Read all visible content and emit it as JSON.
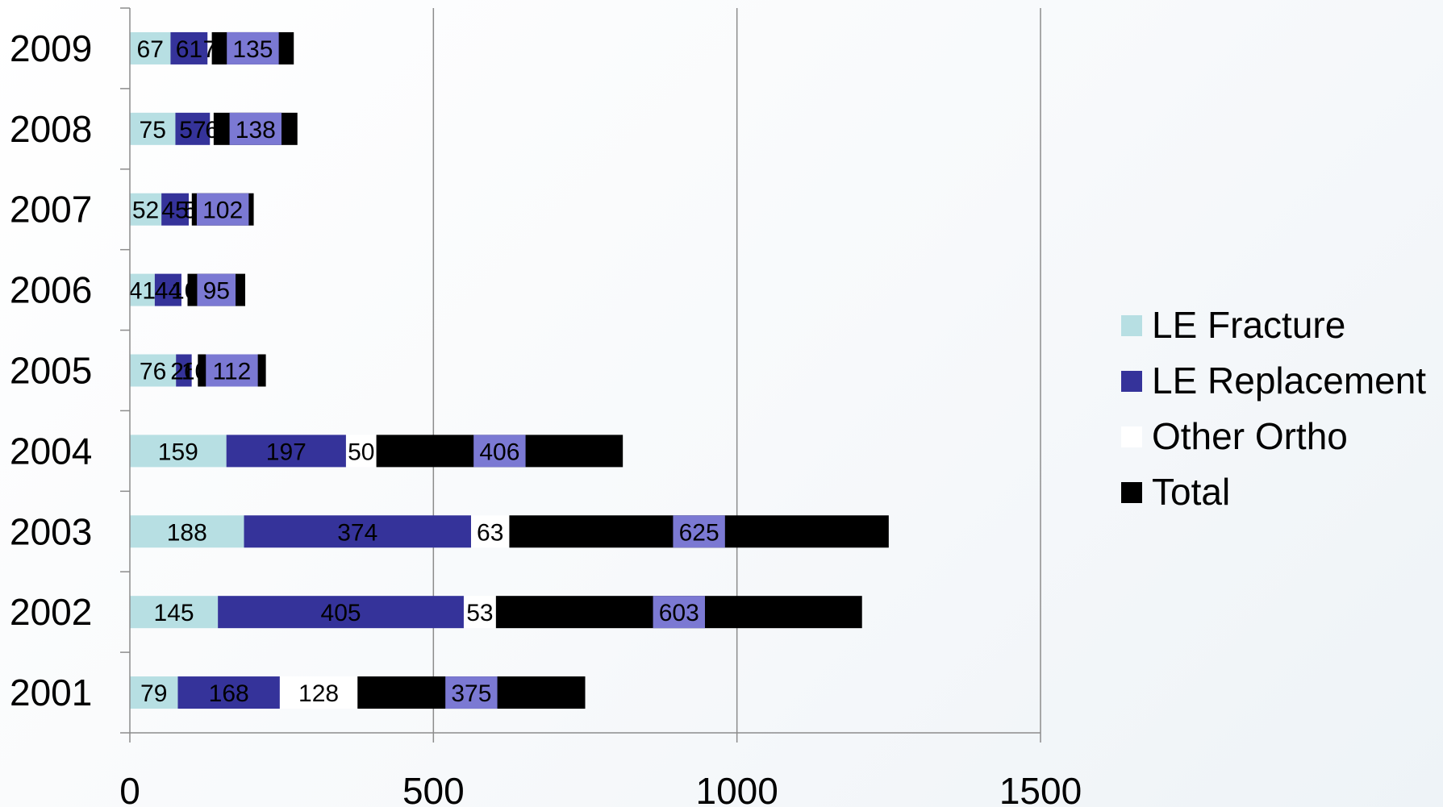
{
  "chart_data": {
    "type": "bar",
    "orientation": "horizontal",
    "stacked": true,
    "title": "",
    "xlabel": "",
    "ylabel": "",
    "xlim": [
      0,
      1500
    ],
    "x_ticks": [
      "0",
      "500",
      "1000",
      "1500"
    ],
    "categories": [
      "2009",
      "2008",
      "2007",
      "2006",
      "2005",
      "2004",
      "2003",
      "2002",
      "2001"
    ],
    "series": [
      {
        "name": "LE Fracture",
        "color": "#b7dfe3",
        "label_color": "#000000",
        "values": [
          67,
          75,
          52,
          41,
          76,
          159,
          188,
          145,
          79
        ]
      },
      {
        "name": "LE Replacement",
        "color": "#35339a",
        "label_color": "#000000",
        "values": [
          61,
          57,
          45,
          44,
          26,
          197,
          374,
          405,
          168
        ]
      },
      {
        "name": "Other Ortho",
        "color": "#ffffff",
        "label_color": "#000000",
        "values": [
          7,
          6,
          5,
          10,
          10,
          50,
          63,
          53,
          128
        ]
      },
      {
        "name": "Total",
        "color": "#000000",
        "label_color": "#000000",
        "values": [
          135,
          138,
          102,
          95,
          112,
          406,
          625,
          603,
          375
        ]
      }
    ],
    "total_label_bg": "#7b79d3",
    "grid": true,
    "legend_position": "right"
  }
}
